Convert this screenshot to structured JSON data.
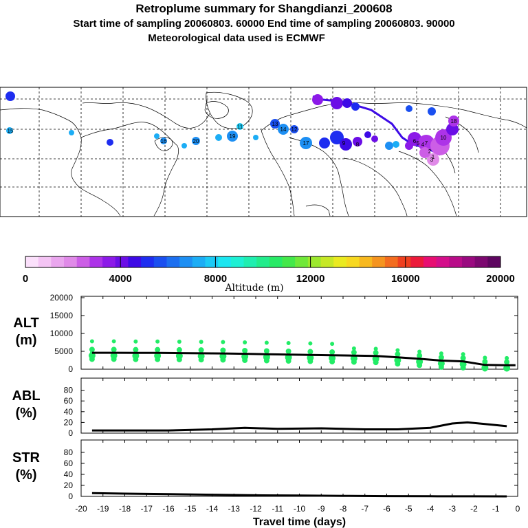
{
  "header": {
    "title": "Retroplume summary for Shangdianzi_200608",
    "line2": "Start time of sampling 20060803. 60000     End time of sampling 20060803. 90000",
    "line3": "Meteorological data used is ECMWF"
  },
  "colorbar": {
    "label": "Altitude (m)",
    "ticks": [
      "0",
      "4000",
      "8000",
      "12000",
      "16000",
      "20000"
    ],
    "colors": [
      "#fbe0fb",
      "#f4c4f4",
      "#eaa6ee",
      "#e08ae8",
      "#cc5ee6",
      "#ad33e8",
      "#8c1ae8",
      "#6b0ee6",
      "#3d0ae6",
      "#1e2df0",
      "#1a4ff0",
      "#1c6ff0",
      "#1d8ff3",
      "#1cadf5",
      "#1ccaf5",
      "#1ce6f0",
      "#1ef0d4",
      "#20eeb0",
      "#22ec8c",
      "#28ea66",
      "#44e84a",
      "#70e83a",
      "#9ce82e",
      "#c6e826",
      "#eaea20",
      "#f7d820",
      "#f7b81f",
      "#f5941f",
      "#f36c1f",
      "#ef401f",
      "#ec1a3a",
      "#e80e72",
      "#d40e8a",
      "#b80c88",
      "#9a0a80",
      "#7c0870",
      "#5e0660"
    ]
  },
  "map_labels": [
    "18",
    "13",
    "14",
    "12",
    "15",
    "16",
    "17",
    "19",
    "20",
    "9",
    "8",
    "11",
    "10",
    "7",
    "6",
    "5",
    "4",
    "3",
    "2",
    "1"
  ],
  "chart_data": [
    {
      "type": "line",
      "panel": "ALT",
      "ylabel": "ALT\n(m)",
      "ylabel_top": "ALT",
      "ylabel_bottom": "(m)",
      "xlim": [
        -20,
        0
      ],
      "ylim": [
        0,
        20000
      ],
      "yticks": [
        "20000",
        "15000",
        "10000",
        "5000",
        "0"
      ],
      "x": [
        -19.5,
        -18.5,
        -17.5,
        -16.5,
        -15.5,
        -14.5,
        -13.5,
        -12.5,
        -11.5,
        -10.5,
        -9.5,
        -8.5,
        -7.5,
        -6.5,
        -5.5,
        -4.5,
        -3.5,
        -2.5,
        -1.5,
        -0.5,
        -0.1
      ],
      "values": [
        4600,
        4600,
        4550,
        4550,
        4500,
        4450,
        4400,
        4300,
        4200,
        4100,
        4000,
        3900,
        3800,
        3700,
        3300,
        2900,
        2400,
        2200,
        1200,
        1100,
        1100
      ],
      "scatter_series": "green dots show plume particle altitude distribution"
    },
    {
      "type": "line",
      "panel": "ABL",
      "ylabel_top": "ABL",
      "ylabel_bottom": "(%)",
      "xlim": [
        -20,
        0
      ],
      "ylim": [
        0,
        100
      ],
      "yticks": [
        "80",
        "60",
        "40",
        "20",
        "0"
      ],
      "x": [
        -19.5,
        -18,
        -16,
        -14,
        -12.5,
        -11,
        -9,
        -7,
        -5.5,
        -4,
        -3,
        -2.3,
        -1.5,
        -0.5
      ],
      "values": [
        5,
        5,
        5,
        7,
        10,
        8,
        9,
        7,
        7,
        10,
        18,
        20,
        17,
        13
      ]
    },
    {
      "type": "line",
      "panel": "STR",
      "ylabel_top": "STR",
      "ylabel_bottom": "(%)",
      "xlim": [
        -20,
        0
      ],
      "ylim": [
        0,
        100
      ],
      "yticks": [
        "80",
        "60",
        "40",
        "20",
        "0"
      ],
      "x": [
        -19.5,
        -18,
        -16,
        -14,
        -12,
        -10,
        -8,
        -6,
        -4,
        -2,
        -0.5
      ],
      "values": [
        6,
        5,
        4,
        3,
        2,
        1.5,
        1,
        0.5,
        0.2,
        0.1,
        0
      ],
      "xlabel": "Travel time (days)",
      "xticks": [
        "-20",
        "-19",
        "-18",
        "-17",
        "-16",
        "-15",
        "-14",
        "-13",
        "-12",
        "-11",
        "-10",
        "-9",
        "-8",
        "-7",
        "-6",
        "-5",
        "-4",
        "-3",
        "-2",
        "-1",
        "0"
      ]
    }
  ]
}
